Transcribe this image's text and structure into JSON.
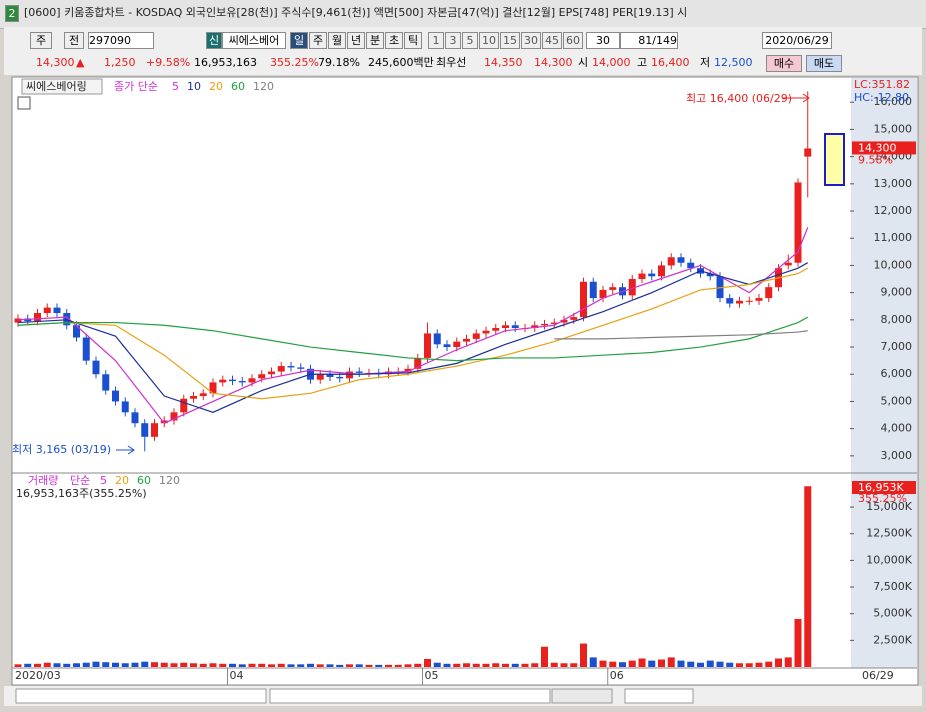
{
  "window": {
    "icon": "2",
    "title": "[0600] 키움종합차트 - KOSDAQ 외국인보유[28(천)] 주식수[9,461(천)] 액면[500] 자본금[47(억)] 결산[12월] EPS[748] PER[19.13] 시"
  },
  "toolbar": {
    "market": "주",
    "mode": "전",
    "code": "297090",
    "badge": "신",
    "name": "씨에스베어",
    "periods": [
      "일",
      "주",
      "월",
      "년",
      "분",
      "초",
      "틱"
    ],
    "intervals": [
      "1",
      "3",
      "5",
      "10",
      "15",
      "30",
      "45",
      "60"
    ],
    "interval_select": "30",
    "count": "81/149",
    "date": "2020/06/29"
  },
  "quote": {
    "price": "14,300",
    "arrow": "▲",
    "change": "1,250",
    "change_pct": "+9.58%",
    "volume": "16,953,163",
    "volume_ratio": "355.25%",
    "turnover": "79.18%",
    "amount": "245,600백만",
    "best_label": "최우선",
    "ask": "14,350",
    "bid": "14,300",
    "open_label": "시",
    "open": "14,000",
    "high_label": "고",
    "high": "16,400",
    "low_label": "저",
    "low": "12,500",
    "buy": "매수",
    "sell": "매도"
  },
  "chart_data": [
    {
      "type": "candlestick",
      "title": "씨에스베어링",
      "ma_label": "종가 단순",
      "x_end": "06/29",
      "categories": [
        "2020/03",
        null,
        null,
        null,
        null,
        null,
        null,
        null,
        null,
        null,
        null,
        null,
        null,
        null,
        null,
        null,
        null,
        null,
        null,
        null,
        null,
        null,
        "04",
        null,
        null,
        null,
        null,
        null,
        null,
        null,
        null,
        null,
        null,
        null,
        null,
        null,
        null,
        null,
        null,
        null,
        null,
        null,
        "05",
        null,
        null,
        null,
        null,
        null,
        null,
        null,
        null,
        null,
        null,
        null,
        null,
        null,
        null,
        null,
        null,
        null,
        null,
        "06",
        null,
        null,
        null,
        null,
        null,
        null,
        null,
        null,
        null,
        null,
        null,
        null,
        null,
        null,
        null,
        null,
        null,
        null,
        null,
        null
      ],
      "open": [
        7900,
        8050,
        7950,
        8250,
        8450,
        8250,
        7800,
        7350,
        6500,
        6000,
        5400,
        5000,
        4600,
        4200,
        3700,
        4200,
        4300,
        4600,
        5100,
        5200,
        5300,
        5700,
        5800,
        5750,
        5700,
        5850,
        6000,
        6100,
        6300,
        6250,
        6200,
        5800,
        6000,
        5900,
        5850,
        6100,
        6050,
        6050,
        6000,
        6100,
        6100,
        6200,
        6600,
        7500,
        7100,
        7000,
        7200,
        7300,
        7500,
        7600,
        7700,
        7800,
        7700,
        7700,
        7800,
        7850,
        7900,
        8000,
        8100,
        9400,
        8800,
        9100,
        9200,
        8900,
        9500,
        9700,
        9600,
        10000,
        10300,
        10100,
        9900,
        9700,
        9600,
        8800,
        8600,
        8700,
        8700,
        8800,
        9200,
        10000,
        10100,
        14000
      ],
      "high": [
        8200,
        8200,
        8400,
        8600,
        8600,
        8400,
        7950,
        7500,
        6650,
        6150,
        5550,
        5150,
        4750,
        4350,
        4350,
        4450,
        4750,
        5250,
        5350,
        5450,
        5850,
        5950,
        5950,
        5900,
        6000,
        6150,
        6250,
        6450,
        6450,
        6400,
        6350,
        6150,
        6150,
        6050,
        6250,
        6250,
        6200,
        6200,
        6250,
        6250,
        6350,
        6750,
        7900,
        7650,
        7250,
        7350,
        7450,
        7650,
        7750,
        7850,
        7950,
        7950,
        7850,
        7950,
        8000,
        8050,
        8150,
        8250,
        9550,
        9550,
        9250,
        9350,
        9350,
        9650,
        9850,
        9850,
        10150,
        10450,
        10450,
        10250,
        10050,
        9850,
        9750,
        8950,
        8850,
        8850,
        8950,
        9350,
        10050,
        10400,
        13200,
        16400
      ],
      "low": [
        7750,
        7800,
        7800,
        8100,
        8100,
        7650,
        7200,
        6350,
        5850,
        5250,
        4850,
        4450,
        4050,
        3165,
        3550,
        4050,
        4150,
        4450,
        4950,
        5050,
        5150,
        5550,
        5600,
        5550,
        5550,
        5700,
        5850,
        5950,
        6100,
        6050,
        5650,
        5650,
        5750,
        5700,
        5700,
        5900,
        5900,
        5850,
        5850,
        5950,
        5950,
        6050,
        6450,
        6950,
        6850,
        6850,
        7050,
        7150,
        7350,
        7450,
        7550,
        7550,
        7550,
        7550,
        7650,
        7700,
        7750,
        7850,
        7950,
        8650,
        8650,
        8950,
        8750,
        8750,
        9350,
        9450,
        9450,
        9850,
        9950,
        9750,
        9550,
        9450,
        8650,
        8450,
        8450,
        8550,
        8550,
        8650,
        9050,
        9850,
        9950,
        12500
      ],
      "close": [
        8050,
        7950,
        8250,
        8450,
        8250,
        7800,
        7350,
        6500,
        6000,
        5400,
        5000,
        4600,
        4200,
        3700,
        4200,
        4300,
        4600,
        5100,
        5200,
        5300,
        5700,
        5800,
        5750,
        5700,
        5850,
        6000,
        6100,
        6300,
        6250,
        6200,
        5800,
        6000,
        5900,
        5850,
        6100,
        6050,
        6050,
        6000,
        6100,
        6100,
        6200,
        6600,
        7500,
        7100,
        7000,
        7200,
        7300,
        7500,
        7600,
        7700,
        7800,
        7700,
        7700,
        7800,
        7850,
        7900,
        8000,
        8100,
        9400,
        8800,
        9100,
        9200,
        8900,
        9500,
        9700,
        9600,
        10000,
        10300,
        10100,
        9900,
        9700,
        9600,
        8800,
        8600,
        8700,
        8700,
        8800,
        9200,
        9900,
        10100,
        13050,
        14300
      ],
      "up_color": "#e8201e",
      "down_color": "#1a50d0",
      "moving_averages": [
        {
          "name": "5",
          "color": "#d030d0",
          "x": [
            0,
            5,
            10,
            15,
            20,
            25,
            30,
            35,
            40,
            45,
            50,
            55,
            60,
            65,
            70,
            75,
            80,
            81
          ],
          "values": [
            8000,
            8100,
            6500,
            4200,
            5000,
            5800,
            6150,
            6000,
            6100,
            6900,
            7600,
            7800,
            8800,
            9400,
            10000,
            9000,
            10500,
            11400
          ]
        },
        {
          "name": "10",
          "color": "#1c2f9a",
          "x": [
            0,
            5,
            10,
            15,
            20,
            25,
            30,
            35,
            40,
            45,
            50,
            55,
            60,
            65,
            70,
            75,
            80,
            81
          ],
          "values": [
            7900,
            8000,
            7400,
            5200,
            4600,
            5400,
            6000,
            6000,
            6050,
            6400,
            7100,
            7700,
            8300,
            9000,
            9800,
            9300,
            9900,
            10100
          ]
        },
        {
          "name": "20",
          "color": "#e8a010",
          "x": [
            0,
            5,
            10,
            15,
            20,
            25,
            30,
            35,
            40,
            45,
            50,
            55,
            60,
            65,
            70,
            75,
            80,
            81
          ],
          "values": [
            7800,
            7900,
            7800,
            6700,
            5300,
            5100,
            5300,
            5800,
            6000,
            6300,
            6700,
            7200,
            7800,
            8400,
            9100,
            9300,
            9700,
            9900
          ]
        },
        {
          "name": "60",
          "color": "#22a040",
          "x": [
            0,
            5,
            10,
            15,
            20,
            25,
            30,
            35,
            40,
            45,
            50,
            55,
            60,
            65,
            70,
            75,
            80,
            81
          ],
          "values": [
            7800,
            7900,
            7900,
            7800,
            7600,
            7300,
            7000,
            6800,
            6600,
            6500,
            6600,
            6600,
            6700,
            6800,
            7000,
            7300,
            7900,
            8100
          ]
        },
        {
          "name": "120",
          "color": "#808080",
          "x": [
            55,
            60,
            65,
            70,
            75,
            80,
            81
          ],
          "values": [
            7300,
            7300,
            7350,
            7400,
            7450,
            7550,
            7600
          ]
        }
      ],
      "ylim": [
        2480,
        16890
      ],
      "yticks": [
        {
          "value": 3000,
          "label": "3,000"
        },
        {
          "value": 4000,
          "label": "4,000"
        },
        {
          "value": 5000,
          "label": "5,000"
        },
        {
          "value": 6000,
          "label": "6,000"
        },
        {
          "value": 7000,
          "label": "7,000"
        },
        {
          "value": 8000,
          "label": "8,000"
        },
        {
          "value": 9000,
          "label": "9,000"
        },
        {
          "value": 10000,
          "label": "10,000"
        },
        {
          "value": 11000,
          "label": "11,000"
        },
        {
          "value": 12000,
          "label": "12,000"
        },
        {
          "value": 13000,
          "label": "13,000"
        },
        {
          "value": 14000,
          "label": "14,000"
        },
        {
          "value": 15000,
          "label": "15,000"
        },
        {
          "value": 16000,
          "label": "16,000"
        }
      ],
      "annotations": {
        "lc": "LC:351.82",
        "hc": "HC:-12.80",
        "high": "최고 16,400 (06/29)",
        "low": "최저 3,165 (03/19)",
        "last_price": "14,300",
        "last_change": "9.58%"
      }
    },
    {
      "type": "bar",
      "title": "거래량",
      "ma_label": "단순",
      "ma_periods": [
        {
          "name": "5",
          "color": "#d030d0"
        },
        {
          "name": "20",
          "color": "#e8a010"
        },
        {
          "name": "60",
          "color": "#22a040"
        },
        {
          "name": "120",
          "color": "#808080"
        }
      ],
      "values": [
        250,
        300,
        300,
        400,
        350,
        300,
        350,
        400,
        500,
        450,
        400,
        350,
        400,
        500,
        450,
        400,
        350,
        400,
        350,
        300,
        350,
        300,
        300,
        250,
        300,
        300,
        250,
        300,
        250,
        250,
        300,
        250,
        250,
        200,
        250,
        250,
        200,
        200,
        200,
        200,
        250,
        300,
        750,
        400,
        300,
        300,
        350,
        300,
        300,
        350,
        300,
        300,
        300,
        350,
        1900,
        400,
        350,
        350,
        2200,
        900,
        600,
        500,
        450,
        600,
        800,
        600,
        700,
        900,
        600,
        500,
        400,
        600,
        500,
        400,
        350,
        350,
        400,
        500,
        800,
        900,
        4500,
        16953
      ],
      "ylim": [
        0,
        17820
      ],
      "yticks": [
        {
          "value": 2500,
          "label": "2,500K"
        },
        {
          "value": 5000,
          "label": "5,000K"
        },
        {
          "value": 7500,
          "label": "7,500K"
        },
        {
          "value": 10000,
          "label": "10,000K"
        },
        {
          "value": 12500,
          "label": "12,500K"
        },
        {
          "value": 15000,
          "label": "15,000K"
        }
      ],
      "annotations": {
        "volume": "16,953,163주(355.25%)",
        "last_value": "16,953K",
        "last_ratio": "355.25%"
      }
    }
  ]
}
